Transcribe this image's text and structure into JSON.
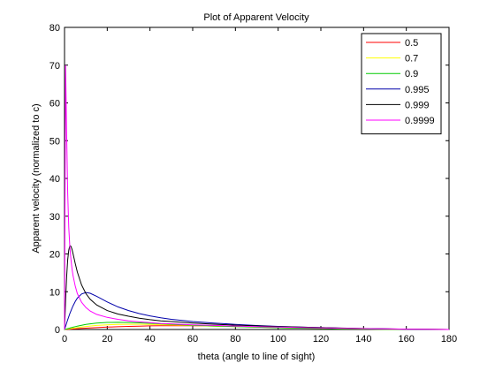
{
  "chart_data": {
    "type": "line",
    "title": "Plot of Apparent Velocity",
    "xlabel": "theta (angle to line of sight)",
    "ylabel": "Apparent velocity (normalized to c)",
    "xlim": [
      0,
      180
    ],
    "ylim": [
      0,
      80
    ],
    "xticks": [
      0,
      20,
      40,
      60,
      80,
      100,
      120,
      140,
      160,
      180
    ],
    "yticks": [
      0,
      10,
      20,
      30,
      40,
      50,
      60,
      70,
      80
    ],
    "grid": false,
    "legend_position": "top-right",
    "x": [
      0,
      0.5,
      1,
      1.5,
      2,
      2.5,
      3,
      3.5,
      4,
      5,
      6,
      8,
      10,
      12,
      15,
      20,
      25,
      30,
      35,
      40,
      45,
      50,
      60,
      70,
      80,
      90,
      100,
      110,
      120,
      130,
      140,
      150,
      160,
      170,
      180
    ],
    "series": [
      {
        "name": "0.5",
        "color": "#ff0000",
        "values": [
          0,
          0.02,
          0.04,
          0.05,
          0.07,
          0.09,
          0.11,
          0.12,
          0.14,
          0.17,
          0.21,
          0.27,
          0.34,
          0.4,
          0.49,
          0.62,
          0.73,
          0.82,
          0.89,
          0.95,
          0.98,
          1.0,
          0.99,
          0.92,
          0.82,
          0.7,
          0.58,
          0.46,
          0.36,
          0.26,
          0.18,
          0.11,
          0.06,
          0.03,
          0
        ]
      },
      {
        "name": "0.7",
        "color": "#ffff00",
        "values": [
          0,
          0.04,
          0.09,
          0.13,
          0.17,
          0.21,
          0.26,
          0.3,
          0.34,
          0.42,
          0.5,
          0.66,
          0.8,
          0.92,
          1.08,
          1.25,
          1.35,
          1.38,
          1.37,
          1.33,
          1.27,
          1.2,
          1.05,
          0.89,
          0.74,
          0.6,
          0.47,
          0.36,
          0.27,
          0.19,
          0.12,
          0.07,
          0.04,
          0.02,
          0
        ]
      },
      {
        "name": "0.9",
        "color": "#00cc00",
        "values": [
          0,
          0.08,
          0.16,
          0.23,
          0.31,
          0.38,
          0.46,
          0.53,
          0.61,
          0.75,
          0.88,
          1.12,
          1.33,
          1.5,
          1.7,
          1.87,
          1.9,
          1.85,
          1.75,
          1.63,
          1.5,
          1.37,
          1.13,
          0.93,
          0.75,
          0.6,
          0.47,
          0.36,
          0.27,
          0.19,
          0.13,
          0.08,
          0.04,
          0.02,
          0
        ]
      },
      {
        "name": "0.995",
        "color": "#0000aa",
        "values": [
          0,
          0.87,
          1.73,
          2.6,
          3.4,
          4.2,
          4.95,
          5.65,
          6.3,
          7.4,
          8.3,
          9.4,
          9.8,
          9.6,
          8.8,
          7.3,
          6.0,
          5.0,
          4.2,
          3.6,
          3.1,
          2.7,
          2.1,
          1.7,
          1.35,
          1.05,
          0.83,
          0.64,
          0.48,
          0.35,
          0.24,
          0.15,
          0.08,
          0.03,
          0
        ]
      },
      {
        "name": "0.999",
        "color": "#000000",
        "values": [
          0,
          7.8,
          14.0,
          18.5,
          21.0,
          22.2,
          22.0,
          21.2,
          20.0,
          17.5,
          15.2,
          11.8,
          9.5,
          8.0,
          6.5,
          5.0,
          4.1,
          3.5,
          3.0,
          2.6,
          2.3,
          2.1,
          1.7,
          1.4,
          1.15,
          0.95,
          0.78,
          0.62,
          0.49,
          0.37,
          0.26,
          0.17,
          0.1,
          0.04,
          0
        ]
      },
      {
        "name": "0.9999",
        "color": "#ff00ff",
        "values": [
          0,
          70.0,
          52.0,
          36.0,
          27.0,
          22.0,
          18.5,
          16.0,
          14.2,
          11.5,
          9.5,
          7.2,
          5.8,
          4.9,
          4.0,
          3.2,
          2.7,
          2.3,
          2.0,
          1.8,
          1.6,
          1.5,
          1.25,
          1.08,
          0.92,
          0.78,
          0.65,
          0.54,
          0.43,
          0.33,
          0.24,
          0.16,
          0.09,
          0.04,
          0
        ]
      }
    ]
  }
}
